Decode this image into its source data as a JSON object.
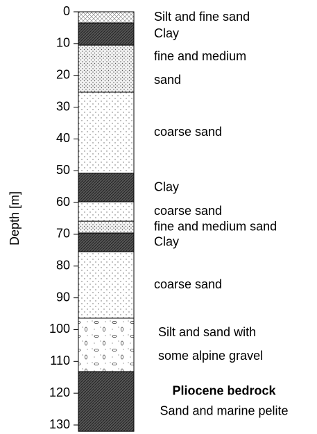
{
  "log": {
    "axis_label": "Depth [m]",
    "ylim": [
      0,
      130
    ],
    "yticks": [
      0,
      10,
      20,
      30,
      40,
      50,
      60,
      70,
      80,
      90,
      100,
      110,
      120,
      130
    ],
    "layers": [
      {
        "top": 0,
        "bottom": 3.5,
        "fill": "silt",
        "label": [
          "Silt and fine sand"
        ]
      },
      {
        "top": 3.5,
        "bottom": 10.5,
        "fill": "clay",
        "label": [
          "Clay"
        ]
      },
      {
        "top": 10.5,
        "bottom": 25.3,
        "fill": "fine-sand",
        "label": [
          "fine and medium",
          "sand"
        ]
      },
      {
        "top": 25.3,
        "bottom": 50.8,
        "fill": "coarse-sand",
        "label": [
          "coarse sand"
        ]
      },
      {
        "top": 50.8,
        "bottom": 59.8,
        "fill": "clay",
        "label": [
          "Clay"
        ]
      },
      {
        "top": 59.8,
        "bottom": 65.9,
        "fill": "coarse-sand",
        "label": [
          "coarse sand"
        ]
      },
      {
        "top": 65.9,
        "bottom": 69.6,
        "fill": "fine-sand",
        "label": [
          "fine and medium sand"
        ]
      },
      {
        "top": 69.6,
        "bottom": 75.5,
        "fill": "clay",
        "label": [
          "Clay"
        ]
      },
      {
        "top": 75.5,
        "bottom": 96.4,
        "fill": "coarse-sand",
        "label": [
          "coarse sand"
        ]
      },
      {
        "top": 96.4,
        "bottom": 113.2,
        "fill": "gravel",
        "label": [
          "Silt and sand with",
          "some alpine gravel"
        ]
      },
      {
        "top": 113.2,
        "bottom": 132,
        "fill": "clay",
        "bold_first_line": true,
        "label": [
          "Pliocene bedrock",
          "Sand and marine pelite"
        ]
      }
    ]
  }
}
